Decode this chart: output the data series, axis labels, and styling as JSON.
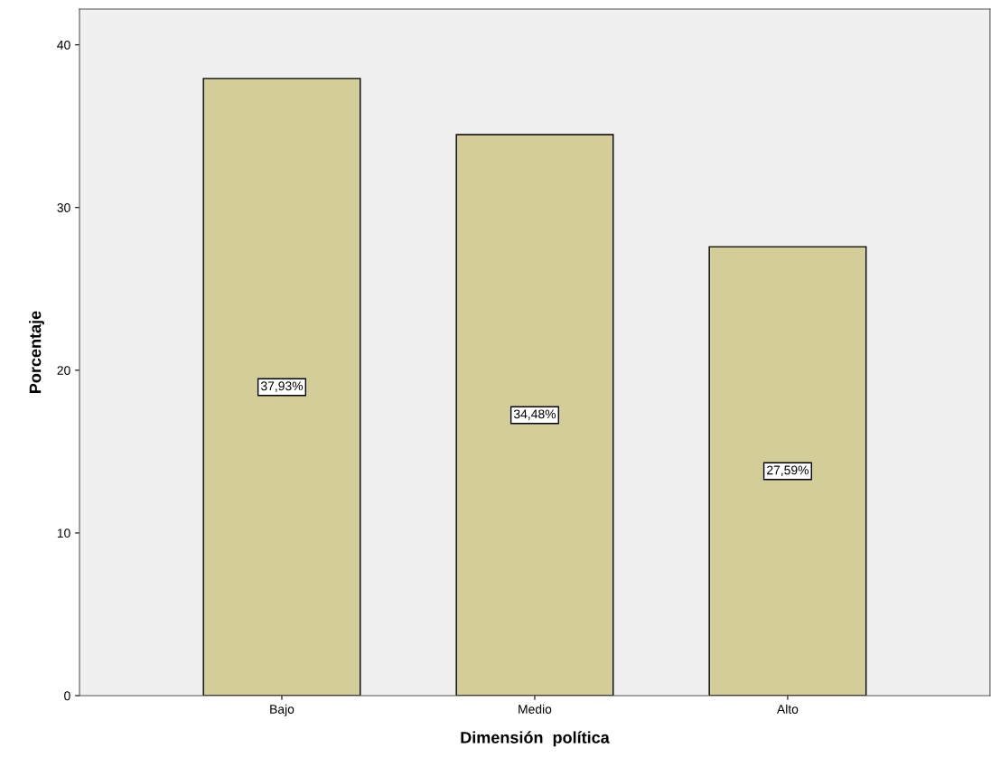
{
  "chart_data": {
    "type": "bar",
    "xlabel": "Dimensión  política",
    "ylabel": "Porcentaje",
    "categories": [
      "Bajo",
      "Medio",
      "Alto"
    ],
    "values": [
      37.93,
      34.48,
      27.59
    ],
    "value_labels": [
      "37,93%",
      "34,48%",
      "27,59%"
    ],
    "color": "#d3ce97",
    "ylim": [
      0,
      42.2
    ],
    "yticks": [
      0,
      10,
      20,
      30,
      40
    ],
    "grid": false,
    "legend": false
  }
}
